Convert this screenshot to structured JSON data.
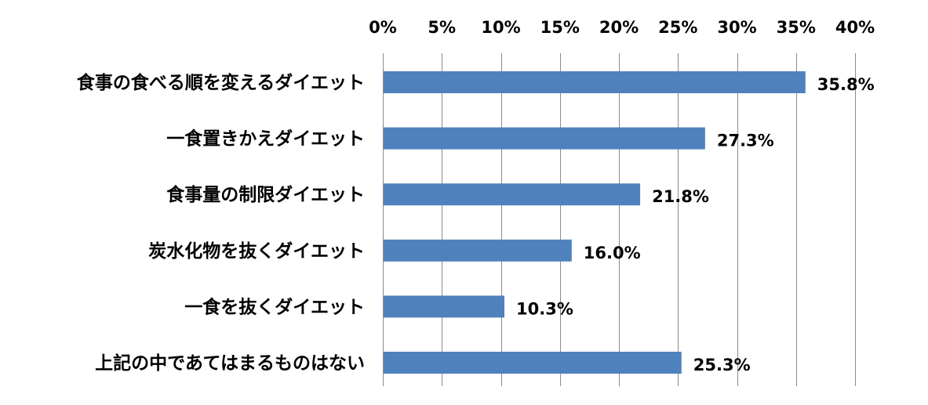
{
  "chart_data": {
    "type": "bar",
    "orientation": "horizontal",
    "categories": [
      "食事の食べる順を変えるダイエット",
      "一食置きかえダイエット",
      "食事量の制限ダイエット",
      "炭水化物を抜くダイエット",
      "一食を抜くダイエット",
      "上記の中であてはまるものはない"
    ],
    "values": [
      35.8,
      27.3,
      21.8,
      16.0,
      10.3,
      25.3
    ],
    "data_labels": [
      "35.8%",
      "27.3%",
      "21.8%",
      "16.0%",
      "10.3%",
      "25.3%"
    ],
    "x_ticks": [
      0,
      5,
      10,
      15,
      20,
      25,
      30,
      35,
      40
    ],
    "x_tick_labels": [
      "0%",
      "5%",
      "10%",
      "15%",
      "20%",
      "25%",
      "30%",
      "35%",
      "40%"
    ],
    "xlim": [
      0,
      40
    ],
    "x_axis_position": "top",
    "grid": true,
    "title": "",
    "xlabel": "",
    "ylabel": "",
    "bar_color": "#4F81BD",
    "grid_color": "#8C8C8C"
  }
}
